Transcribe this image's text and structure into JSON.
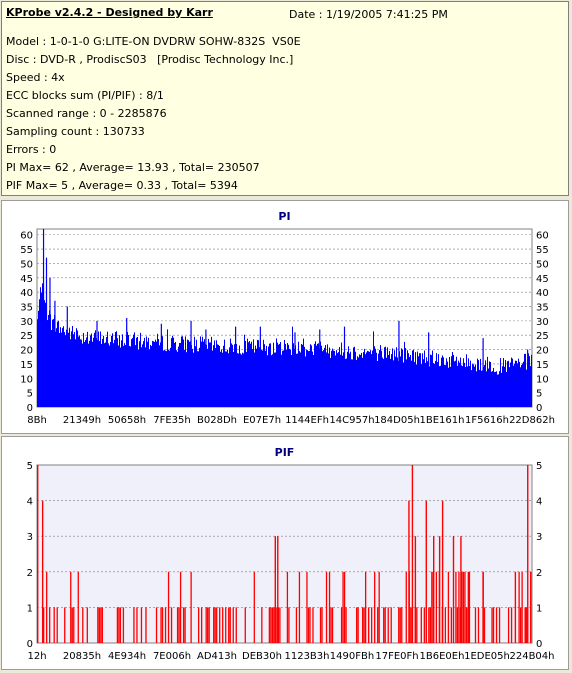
{
  "info": {
    "title": "KProbe v2.4.2 - Designed by Karr",
    "date": "Date :  1/19/2005 7:41:25 PM",
    "lines": [
      "Model : 1-0-1-0 G:LITE-ON DVDRW SOHW-832S  VS0E",
      "Disc : DVD-R , ProdiscS03   [Prodisc Technology Inc.]",
      "Speed : 4x",
      "ECC blocks sum (PI/PIF) : 8/1",
      "Scanned range : 0 - 2285876",
      "Sampling count : 130733",
      "Errors : 0",
      "PI Max= 62 , Average= 13.93 , Total= 230507",
      "PIF Max= 5 , Average= 0.33 , Total= 5394"
    ]
  },
  "colors": {
    "pi_bar": "#0000ff",
    "pif_bar": "#ff0000",
    "title": "#000080",
    "plot_bg": "#ffffff",
    "pif_plot_bg": "#f0f0fa"
  },
  "chart_data": [
    {
      "type": "bar",
      "title": "PI",
      "ylim": [
        0,
        62
      ],
      "yticks": [
        0,
        5,
        10,
        15,
        20,
        25,
        30,
        35,
        40,
        45,
        50,
        55,
        60
      ],
      "xticks": [
        "8Bh",
        "21349h",
        "50658h",
        "7FE35h",
        "B028Dh",
        "E07E7h",
        "1144EFh",
        "14C957h",
        "184D05h",
        "1BE161h",
        "1F5616h",
        "22D862h"
      ],
      "grid": "horizontal dashed",
      "profile": {
        "x": [
          0,
          0.005,
          0.01,
          0.015,
          0.02,
          0.03,
          0.05,
          0.08,
          0.12,
          0.2,
          0.3,
          0.4,
          0.5,
          0.6,
          0.65,
          0.7,
          0.75,
          0.8,
          0.85,
          0.9,
          0.94,
          0.97,
          1.0
        ],
        "y": [
          30,
          38,
          45,
          36,
          33,
          29,
          27,
          25,
          24,
          23,
          22,
          21,
          21,
          20,
          19,
          19,
          18,
          17,
          16,
          15,
          14,
          15,
          16
        ]
      },
      "peaks": [
        [
          0.012,
          62
        ],
        [
          0.018,
          52
        ],
        [
          0.025,
          45
        ],
        [
          0.035,
          37
        ],
        [
          0.06,
          35
        ],
        [
          0.12,
          30
        ],
        [
          0.18,
          31
        ],
        [
          0.25,
          29
        ],
        [
          0.31,
          30
        ],
        [
          0.34,
          27
        ],
        [
          0.4,
          28
        ],
        [
          0.45,
          28
        ],
        [
          0.52,
          26
        ],
        [
          0.57,
          27
        ],
        [
          0.62,
          28
        ],
        [
          0.73,
          30
        ],
        [
          0.79,
          26
        ],
        [
          0.9,
          24
        ],
        [
          0.99,
          20
        ]
      ]
    },
    {
      "type": "bar",
      "title": "PIF",
      "ylim": [
        0,
        5
      ],
      "yticks": [
        0,
        1,
        2,
        3,
        4,
        5
      ],
      "xticks": [
        "12h",
        "20835h",
        "4E934h",
        "7E006h",
        "AD413h",
        "DEB30h",
        "1123B3h",
        "1490FBh",
        "17FE0Fh",
        "1B6E0Eh",
        "1EDE05h",
        "224B04h"
      ],
      "grid": "horizontal dashed",
      "peaks": [
        [
          0.0,
          5
        ],
        [
          0.01,
          4
        ],
        [
          0.48,
          3
        ],
        [
          0.485,
          3
        ],
        [
          0.75,
          4
        ],
        [
          0.757,
          5
        ],
        [
          0.763,
          3
        ],
        [
          0.785,
          4
        ],
        [
          0.8,
          3
        ],
        [
          0.812,
          3
        ],
        [
          0.818,
          4
        ],
        [
          0.84,
          3
        ],
        [
          0.855,
          3
        ],
        [
          0.87,
          2
        ],
        [
          0.9,
          2
        ],
        [
          0.965,
          2
        ],
        [
          0.985,
          1
        ],
        [
          0.99,
          5
        ],
        [
          0.996,
          2
        ]
      ]
    }
  ]
}
